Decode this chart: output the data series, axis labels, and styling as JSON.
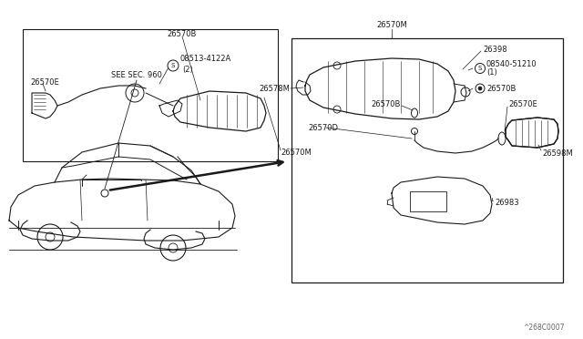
{
  "bg_color": "#ffffff",
  "fig_width": 6.4,
  "fig_height": 3.72,
  "dpi": 100,
  "watermark": "^268C0007",
  "parts": {
    "26570M_top": "26570M",
    "26578M": "26578M",
    "26398": "26398",
    "26570B": "26570B",
    "26570E": "26570E",
    "26570D": "26570D",
    "26598M": "26598M",
    "26570M_bottom": "26570M",
    "26983": "26983",
    "08513_4122A": "08513-4122A",
    "08540_51210": "08540-51210",
    "paren1": "(1)",
    "paren2": "(2)",
    "see_sec": "SEE SEC. 960"
  },
  "line_color": "#1a1a1a",
  "text_color": "#1a1a1a",
  "font_size": 7.0,
  "small_font_size": 6.0
}
